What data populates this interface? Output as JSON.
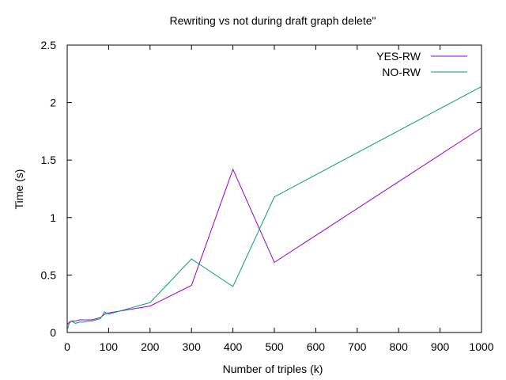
{
  "chart_data": {
    "type": "line",
    "title": "Rewriting vs not during draft graph delete\"",
    "xlabel": "Number of triples (k)",
    "ylabel": "Time (s)",
    "xlim": [
      0,
      1000
    ],
    "ylim": [
      0,
      2.5
    ],
    "xticks": [
      0,
      100,
      200,
      300,
      400,
      500,
      600,
      700,
      800,
      900,
      1000
    ],
    "yticks": [
      0,
      0.5,
      1,
      1.5,
      2,
      2.5
    ],
    "ytick_labels": [
      "0",
      "0.5",
      "1",
      "1.5",
      "2",
      "2.5"
    ],
    "grid": false,
    "legend_position": "top-right",
    "series": [
      {
        "name": "YES-RW",
        "color": "#9400d3",
        "x": [
          1,
          5,
          10,
          20,
          30,
          40,
          50,
          60,
          70,
          80,
          90,
          100,
          200,
          300,
          400,
          500,
          1000
        ],
        "y": [
          0.07,
          0.09,
          0.1,
          0.1,
          0.11,
          0.11,
          0.11,
          0.11,
          0.12,
          0.13,
          0.16,
          0.17,
          0.23,
          0.41,
          1.42,
          0.61,
          1.78
        ]
      },
      {
        "name": "NO-RW",
        "color": "#009e73",
        "x": [
          1,
          5,
          10,
          20,
          30,
          40,
          50,
          60,
          70,
          80,
          90,
          100,
          200,
          300,
          400,
          500,
          1000
        ],
        "y": [
          0.03,
          0.08,
          0.1,
          0.08,
          0.09,
          0.09,
          0.1,
          0.1,
          0.11,
          0.12,
          0.18,
          0.16,
          0.26,
          0.64,
          0.4,
          1.18,
          2.14
        ]
      }
    ]
  }
}
